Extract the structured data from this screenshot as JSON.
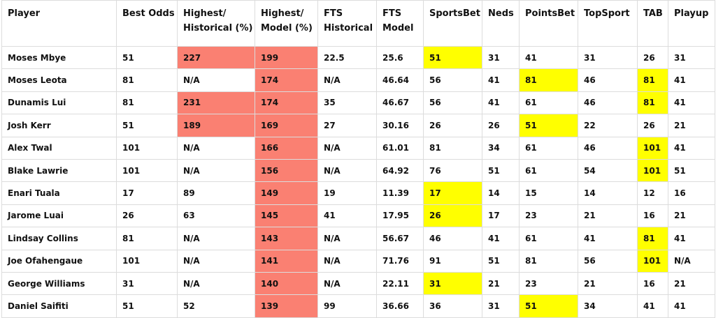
{
  "columns": [
    {
      "key": "player",
      "label": "Player"
    },
    {
      "key": "best",
      "label": "Best Odds"
    },
    {
      "key": "hh",
      "label": "Highest/ Historical (%)"
    },
    {
      "key": "hm",
      "label": "Highest/ Model (%)"
    },
    {
      "key": "ftsh",
      "label": "FTS Historical"
    },
    {
      "key": "ftsm",
      "label": "FTS Model"
    },
    {
      "key": "sb",
      "label": "SportsBet"
    },
    {
      "key": "neds",
      "label": "Neds"
    },
    {
      "key": "pb",
      "label": "PointsBet"
    },
    {
      "key": "ts",
      "label": "TopSport"
    },
    {
      "key": "tab",
      "label": "TAB"
    },
    {
      "key": "playup",
      "label": "Playup"
    }
  ],
  "highlight_colors": {
    "red": "#fa8072",
    "yellow": "#ffff00"
  },
  "rows": [
    {
      "player": "Moses Mbye",
      "best": "51",
      "hh": "227",
      "hm": "199",
      "ftsh": "22.5",
      "ftsm": "25.6",
      "sb": "51",
      "neds": "31",
      "pb": "41",
      "ts": "31",
      "tab": "26",
      "playup": "31",
      "red": [
        "hh",
        "hm"
      ],
      "yellow": [
        "sb"
      ]
    },
    {
      "player": "Moses Leota",
      "best": "81",
      "hh": "N/A",
      "hm": "174",
      "ftsh": "N/A",
      "ftsm": "46.64",
      "sb": "56",
      "neds": "41",
      "pb": "81",
      "ts": "46",
      "tab": "81",
      "playup": "41",
      "red": [
        "hm"
      ],
      "yellow": [
        "pb",
        "tab"
      ]
    },
    {
      "player": "Dunamis Lui",
      "best": "81",
      "hh": "231",
      "hm": "174",
      "ftsh": "35",
      "ftsm": "46.67",
      "sb": "56",
      "neds": "41",
      "pb": "61",
      "ts": "46",
      "tab": "81",
      "playup": "41",
      "red": [
        "hh",
        "hm"
      ],
      "yellow": [
        "tab"
      ]
    },
    {
      "player": "Josh Kerr",
      "best": "51",
      "hh": "189",
      "hm": "169",
      "ftsh": "27",
      "ftsm": "30.16",
      "sb": "26",
      "neds": "26",
      "pb": "51",
      "ts": "22",
      "tab": "26",
      "playup": "21",
      "red": [
        "hh",
        "hm"
      ],
      "yellow": [
        "pb"
      ]
    },
    {
      "player": "Alex Twal",
      "best": "101",
      "hh": "N/A",
      "hm": "166",
      "ftsh": "N/A",
      "ftsm": "61.01",
      "sb": "81",
      "neds": "34",
      "pb": "61",
      "ts": "46",
      "tab": "101",
      "playup": "41",
      "red": [
        "hm"
      ],
      "yellow": [
        "tab"
      ]
    },
    {
      "player": "Blake Lawrie",
      "best": "101",
      "hh": "N/A",
      "hm": "156",
      "ftsh": "N/A",
      "ftsm": "64.92",
      "sb": "76",
      "neds": "51",
      "pb": "61",
      "ts": "54",
      "tab": "101",
      "playup": "51",
      "red": [
        "hm"
      ],
      "yellow": [
        "tab"
      ]
    },
    {
      "player": "Enari Tuala",
      "best": "17",
      "hh": "89",
      "hm": "149",
      "ftsh": "19",
      "ftsm": "11.39",
      "sb": "17",
      "neds": "14",
      "pb": "15",
      "ts": "14",
      "tab": "12",
      "playup": "16",
      "red": [
        "hm"
      ],
      "yellow": [
        "sb"
      ]
    },
    {
      "player": "Jarome Luai",
      "best": "26",
      "hh": "63",
      "hm": "145",
      "ftsh": "41",
      "ftsm": "17.95",
      "sb": "26",
      "neds": "17",
      "pb": "23",
      "ts": "21",
      "tab": "16",
      "playup": "21",
      "red": [
        "hm"
      ],
      "yellow": [
        "sb"
      ]
    },
    {
      "player": "Lindsay Collins",
      "best": "81",
      "hh": "N/A",
      "hm": "143",
      "ftsh": "N/A",
      "ftsm": "56.67",
      "sb": "46",
      "neds": "41",
      "pb": "61",
      "ts": "41",
      "tab": "81",
      "playup": "41",
      "red": [
        "hm"
      ],
      "yellow": [
        "tab"
      ]
    },
    {
      "player": "Joe Ofahengaue",
      "best": "101",
      "hh": "N/A",
      "hm": "141",
      "ftsh": "N/A",
      "ftsm": "71.76",
      "sb": "91",
      "neds": "51",
      "pb": "81",
      "ts": "56",
      "tab": "101",
      "playup": "N/A",
      "red": [
        "hm"
      ],
      "yellow": [
        "tab"
      ]
    },
    {
      "player": "George Williams",
      "best": "31",
      "hh": "N/A",
      "hm": "140",
      "ftsh": "N/A",
      "ftsm": "22.11",
      "sb": "31",
      "neds": "21",
      "pb": "23",
      "ts": "21",
      "tab": "16",
      "playup": "21",
      "red": [
        "hm"
      ],
      "yellow": [
        "sb"
      ]
    },
    {
      "player": "Daniel Saifiti",
      "best": "51",
      "hh": "52",
      "hm": "139",
      "ftsh": "99",
      "ftsm": "36.66",
      "sb": "36",
      "neds": "31",
      "pb": "51",
      "ts": "34",
      "tab": "41",
      "playup": "41",
      "red": [
        "hm"
      ],
      "yellow": [
        "pb"
      ]
    }
  ]
}
